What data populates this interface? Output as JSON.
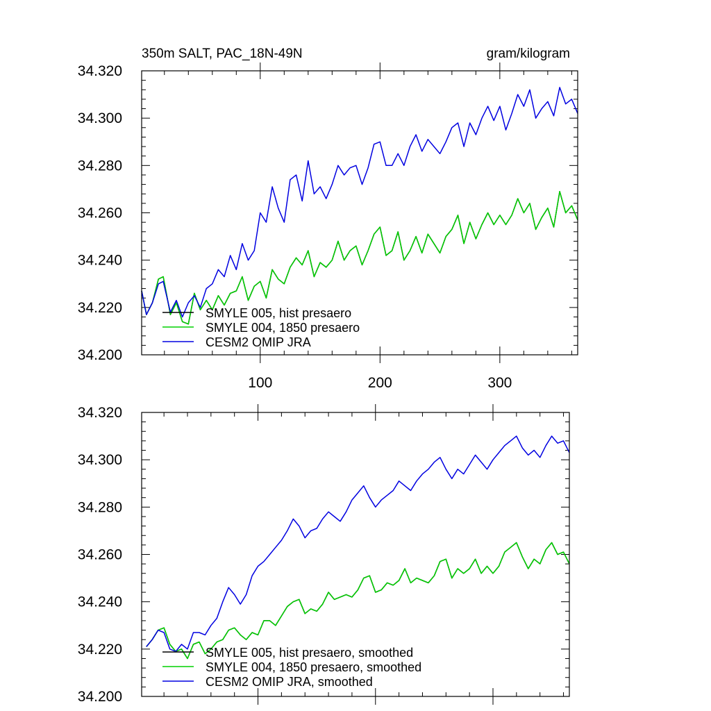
{
  "chart_data": [
    {
      "type": "line",
      "title_left": "350m SALT, PAC_18N-49N",
      "title_right": "gram/kilogram",
      "xlabel": "",
      "ylabel": "",
      "xlim": [
        1,
        365
      ],
      "ylim": [
        34.2,
        34.32
      ],
      "xticks": [
        100,
        200,
        300
      ],
      "xtick_labels": [
        "100",
        "200",
        "300"
      ],
      "yticks": [
        34.2,
        34.22,
        34.24,
        34.26,
        34.28,
        34.3,
        34.32
      ],
      "ytick_labels": [
        "34.200",
        "34.220",
        "34.240",
        "34.260",
        "34.280",
        "34.300",
        "34.320"
      ],
      "legend_position": "bottom-left",
      "series": [
        {
          "name": "SMYLE 005, hist presaero",
          "color": "#000000",
          "x": [
            1,
            5,
            10,
            15,
            19,
            25,
            30,
            35,
            40,
            45,
            50,
            55,
            60,
            65,
            70,
            75,
            80,
            85,
            90,
            95,
            100,
            105,
            110,
            115,
            120,
            125,
            130,
            135,
            140,
            145,
            150,
            155,
            160,
            165,
            170,
            175,
            180,
            185,
            190,
            195,
            200,
            205,
            210,
            215,
            220,
            225,
            230,
            235,
            240,
            245,
            250,
            255,
            260,
            265,
            270,
            275,
            280,
            285,
            290,
            295,
            300,
            305,
            310,
            315,
            320,
            325,
            330,
            335,
            340,
            345,
            350,
            355,
            360,
            365
          ],
          "values": [
            34.227,
            34.217,
            34.222,
            34.232,
            34.233,
            34.217,
            34.222,
            34.214,
            34.213,
            34.226,
            34.219,
            34.223,
            34.219,
            34.225,
            34.221,
            34.226,
            34.227,
            34.233,
            34.223,
            34.229,
            34.231,
            34.224,
            34.236,
            34.232,
            34.23,
            34.237,
            34.241,
            34.238,
            34.244,
            34.233,
            34.239,
            34.237,
            34.24,
            34.248,
            34.24,
            34.244,
            34.246,
            34.238,
            34.244,
            34.251,
            34.254,
            34.242,
            34.244,
            34.252,
            34.24,
            34.244,
            34.25,
            34.243,
            34.251,
            34.247,
            34.243,
            34.25,
            34.253,
            34.259,
            34.247,
            34.256,
            34.249,
            34.255,
            34.26,
            34.255,
            34.259,
            34.255,
            34.259,
            34.266,
            34.26,
            34.264,
            34.253,
            34.258,
            34.262,
            34.254,
            34.269,
            34.26,
            34.263,
            34.257
          ]
        },
        {
          "name": "SMYLE 004, 1850 presaero",
          "color": "#00d000",
          "x": [
            1,
            5,
            10,
            15,
            19,
            25,
            30,
            35,
            40,
            45,
            50,
            55,
            60,
            65,
            70,
            75,
            80,
            85,
            90,
            95,
            100,
            105,
            110,
            115,
            120,
            125,
            130,
            135,
            140,
            145,
            150,
            155,
            160,
            165,
            170,
            175,
            180,
            185,
            190,
            195,
            200,
            205,
            210,
            215,
            220,
            225,
            230,
            235,
            240,
            245,
            250,
            255,
            260,
            265,
            270,
            275,
            280,
            285,
            290,
            295,
            300,
            305,
            310,
            315,
            320,
            325,
            330,
            335,
            340,
            345,
            350,
            355,
            360,
            365
          ],
          "values": [
            34.227,
            34.217,
            34.222,
            34.232,
            34.233,
            34.217,
            34.222,
            34.214,
            34.213,
            34.226,
            34.219,
            34.223,
            34.219,
            34.225,
            34.221,
            34.226,
            34.227,
            34.233,
            34.223,
            34.229,
            34.231,
            34.224,
            34.236,
            34.232,
            34.23,
            34.237,
            34.241,
            34.238,
            34.244,
            34.233,
            34.239,
            34.237,
            34.24,
            34.248,
            34.24,
            34.244,
            34.246,
            34.238,
            34.244,
            34.251,
            34.254,
            34.242,
            34.244,
            34.252,
            34.24,
            34.244,
            34.25,
            34.243,
            34.251,
            34.247,
            34.243,
            34.25,
            34.253,
            34.259,
            34.247,
            34.256,
            34.249,
            34.255,
            34.26,
            34.255,
            34.259,
            34.255,
            34.259,
            34.266,
            34.26,
            34.264,
            34.253,
            34.258,
            34.262,
            34.254,
            34.269,
            34.26,
            34.263,
            34.257
          ]
        },
        {
          "name": "CESM2 OMIP JRA",
          "color": "#0000e0",
          "x": [
            1,
            5,
            10,
            15,
            19,
            25,
            30,
            35,
            40,
            45,
            50,
            55,
            60,
            65,
            70,
            75,
            80,
            85,
            90,
            95,
            100,
            105,
            110,
            115,
            120,
            125,
            130,
            135,
            140,
            145,
            150,
            155,
            160,
            165,
            170,
            175,
            180,
            185,
            190,
            195,
            200,
            205,
            210,
            215,
            220,
            225,
            230,
            235,
            240,
            245,
            250,
            255,
            260,
            265,
            270,
            275,
            280,
            285,
            290,
            295,
            300,
            305,
            310,
            315,
            320,
            325,
            330,
            335,
            340,
            345,
            350,
            355,
            360,
            365
          ],
          "values": [
            34.227,
            34.217,
            34.222,
            34.23,
            34.231,
            34.218,
            34.223,
            34.216,
            34.222,
            34.225,
            34.22,
            34.228,
            34.23,
            34.236,
            34.233,
            34.242,
            34.236,
            34.247,
            34.24,
            34.244,
            34.26,
            34.256,
            34.271,
            34.262,
            34.256,
            34.274,
            34.276,
            34.265,
            34.282,
            34.268,
            34.271,
            34.266,
            34.272,
            34.28,
            34.276,
            34.279,
            34.28,
            34.272,
            34.279,
            34.289,
            34.29,
            34.28,
            34.28,
            34.285,
            34.28,
            34.288,
            34.293,
            34.286,
            34.291,
            34.288,
            34.285,
            34.29,
            34.296,
            34.298,
            34.288,
            34.298,
            34.293,
            34.3,
            34.305,
            34.299,
            34.305,
            34.295,
            34.302,
            34.31,
            34.305,
            34.312,
            34.3,
            34.304,
            34.307,
            34.301,
            34.313,
            34.306,
            34.308,
            34.302
          ]
        }
      ]
    },
    {
      "type": "line",
      "xlabel": "",
      "ylabel": "",
      "xlim": [
        1,
        365
      ],
      "ylim": [
        34.2,
        34.32
      ],
      "xticks": [
        100,
        200,
        300
      ],
      "yticks": [
        34.2,
        34.22,
        34.24,
        34.26,
        34.28,
        34.3,
        34.32
      ],
      "ytick_labels": [
        "34.200",
        "34.220",
        "34.240",
        "34.260",
        "34.280",
        "34.300",
        "34.320"
      ],
      "legend_position": "bottom-left",
      "series": [
        {
          "name": "SMYLE 005, hist presaero, smoothed",
          "color": "#000000",
          "x": [
            5,
            10,
            15,
            20,
            25,
            30,
            35,
            40,
            45,
            50,
            55,
            60,
            65,
            70,
            75,
            80,
            85,
            90,
            95,
            100,
            105,
            110,
            115,
            120,
            125,
            130,
            135,
            140,
            145,
            150,
            155,
            160,
            165,
            170,
            175,
            180,
            185,
            190,
            195,
            200,
            205,
            210,
            215,
            220,
            225,
            230,
            235,
            240,
            245,
            250,
            255,
            260,
            265,
            270,
            275,
            280,
            285,
            290,
            295,
            300,
            305,
            310,
            315,
            320,
            325,
            330,
            335,
            340,
            345,
            350,
            355,
            360,
            365
          ],
          "values": [
            34.221,
            34.224,
            34.228,
            34.229,
            34.222,
            34.219,
            34.22,
            34.216,
            34.222,
            34.223,
            34.218,
            34.22,
            34.223,
            34.224,
            34.228,
            34.229,
            34.226,
            34.224,
            34.227,
            34.226,
            34.232,
            34.232,
            34.23,
            34.234,
            34.238,
            34.24,
            34.241,
            34.235,
            34.237,
            34.236,
            34.239,
            34.244,
            34.241,
            34.242,
            34.243,
            34.242,
            34.245,
            34.25,
            34.251,
            34.244,
            34.245,
            34.248,
            34.247,
            34.249,
            34.254,
            34.248,
            34.25,
            34.249,
            34.248,
            34.251,
            34.257,
            34.258,
            34.25,
            34.254,
            34.252,
            34.254,
            34.258,
            34.252,
            34.255,
            34.252,
            34.255,
            34.261,
            34.263,
            34.265,
            34.259,
            34.254,
            34.258,
            34.256,
            34.262,
            34.265,
            34.26,
            34.261,
            34.256
          ]
        },
        {
          "name": "SMYLE 004, 1850 presaero, smoothed",
          "color": "#00d000",
          "x": [
            5,
            10,
            15,
            20,
            25,
            30,
            35,
            40,
            45,
            50,
            55,
            60,
            65,
            70,
            75,
            80,
            85,
            90,
            95,
            100,
            105,
            110,
            115,
            120,
            125,
            130,
            135,
            140,
            145,
            150,
            155,
            160,
            165,
            170,
            175,
            180,
            185,
            190,
            195,
            200,
            205,
            210,
            215,
            220,
            225,
            230,
            235,
            240,
            245,
            250,
            255,
            260,
            265,
            270,
            275,
            280,
            285,
            290,
            295,
            300,
            305,
            310,
            315,
            320,
            325,
            330,
            335,
            340,
            345,
            350,
            355,
            360,
            365
          ],
          "values": [
            34.221,
            34.224,
            34.228,
            34.229,
            34.222,
            34.219,
            34.22,
            34.216,
            34.222,
            34.223,
            34.218,
            34.22,
            34.223,
            34.224,
            34.228,
            34.229,
            34.226,
            34.224,
            34.227,
            34.226,
            34.232,
            34.232,
            34.23,
            34.234,
            34.238,
            34.24,
            34.241,
            34.235,
            34.237,
            34.236,
            34.239,
            34.244,
            34.241,
            34.242,
            34.243,
            34.242,
            34.245,
            34.25,
            34.251,
            34.244,
            34.245,
            34.248,
            34.247,
            34.249,
            34.254,
            34.248,
            34.25,
            34.249,
            34.248,
            34.251,
            34.257,
            34.258,
            34.25,
            34.254,
            34.252,
            34.254,
            34.258,
            34.252,
            34.255,
            34.252,
            34.255,
            34.261,
            34.263,
            34.265,
            34.259,
            34.254,
            34.258,
            34.256,
            34.262,
            34.265,
            34.26,
            34.261,
            34.256
          ]
        },
        {
          "name": "CESM2 OMIP JRA, smoothed",
          "color": "#0000e0",
          "x": [
            5,
            10,
            15,
            20,
            25,
            30,
            35,
            40,
            45,
            50,
            55,
            60,
            65,
            70,
            75,
            80,
            85,
            90,
            95,
            100,
            105,
            110,
            115,
            120,
            125,
            130,
            135,
            140,
            145,
            150,
            155,
            160,
            165,
            170,
            175,
            180,
            185,
            190,
            195,
            200,
            205,
            210,
            215,
            220,
            225,
            230,
            235,
            240,
            245,
            250,
            255,
            260,
            265,
            270,
            275,
            280,
            285,
            290,
            295,
            300,
            305,
            310,
            315,
            320,
            325,
            330,
            335,
            340,
            345,
            350,
            355,
            360,
            365
          ],
          "values": [
            34.221,
            34.224,
            34.228,
            34.227,
            34.22,
            34.219,
            34.222,
            34.22,
            34.227,
            34.227,
            34.226,
            34.23,
            34.233,
            34.24,
            34.246,
            34.243,
            34.239,
            34.243,
            34.251,
            34.255,
            34.257,
            34.26,
            34.263,
            34.266,
            34.27,
            34.275,
            34.272,
            34.267,
            34.27,
            34.271,
            34.275,
            34.278,
            34.276,
            34.274,
            34.278,
            34.283,
            34.286,
            34.289,
            34.284,
            34.28,
            34.283,
            34.285,
            34.287,
            34.291,
            34.289,
            34.287,
            34.291,
            34.294,
            34.296,
            34.299,
            34.301,
            34.296,
            34.292,
            34.296,
            34.294,
            34.298,
            34.302,
            34.299,
            34.296,
            34.3,
            34.303,
            34.306,
            34.308,
            34.31,
            34.305,
            34.302,
            34.304,
            34.301,
            34.306,
            34.31,
            34.307,
            34.308,
            34.303
          ]
        }
      ]
    }
  ]
}
